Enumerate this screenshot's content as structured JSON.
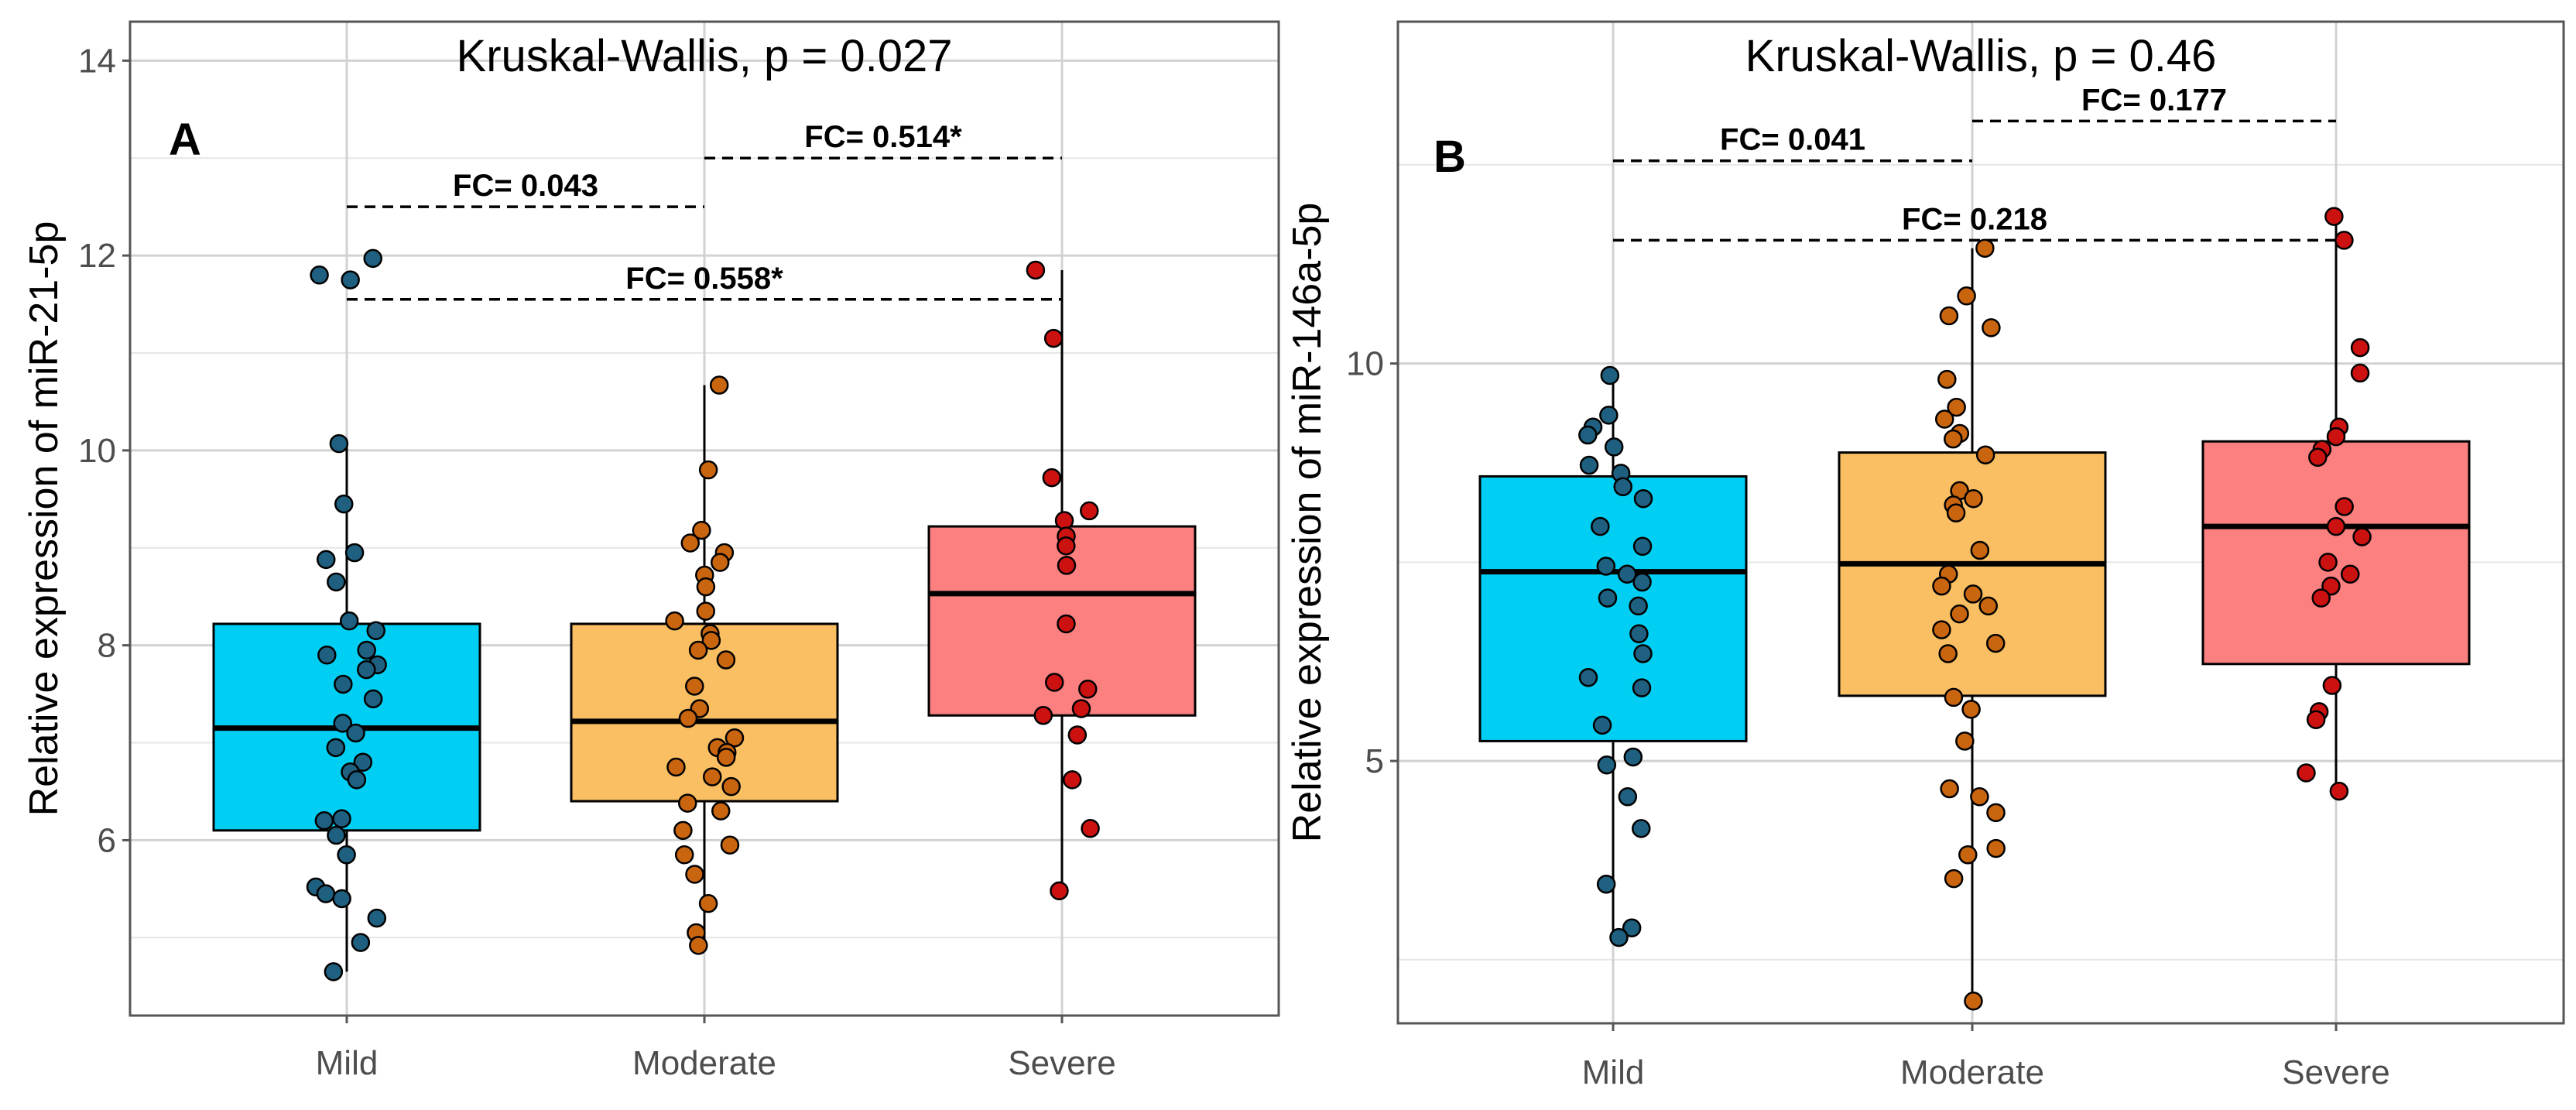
{
  "chart_data": [
    {
      "type": "boxplot",
      "panel_label": "A",
      "title": "Kruskal-Wallis, p = 0.027",
      "ylabel": "Relative expression of miR-21-5p",
      "xlabel": "",
      "ylim": [
        4.2,
        14.4
      ],
      "yticks": [
        6,
        8,
        10,
        12,
        14
      ],
      "grid": true,
      "categories": [
        "Mild",
        "Moderate",
        "Severe"
      ],
      "colors": [
        "#00cef3",
        "#fbbf63",
        "#fc8080"
      ],
      "point_colors": [
        "#1f5f7f",
        "#c9650f",
        "#cc1111"
      ],
      "boxes": [
        {
          "q1": 6.1,
          "median": 7.15,
          "q3": 8.22,
          "whisker_low": 4.65,
          "whisker_high": 10.07
        },
        {
          "q1": 6.4,
          "median": 7.22,
          "q3": 8.22,
          "whisker_low": 4.92,
          "whisker_high": 10.67
        },
        {
          "q1": 7.28,
          "median": 8.53,
          "q3": 9.22,
          "whisker_low": 5.48,
          "whisker_high": 11.85
        }
      ],
      "points": [
        [
          11.97,
          11.8,
          11.75,
          10.07,
          9.45,
          8.95,
          8.88,
          8.65,
          8.25,
          8.15,
          7.95,
          7.9,
          7.8,
          7.75,
          7.6,
          7.45,
          7.2,
          7.1,
          6.95,
          6.8,
          6.7,
          6.62,
          6.22,
          6.2,
          6.05,
          5.85,
          5.52,
          5.45,
          5.4,
          5.2,
          4.95,
          4.65
        ],
        [
          10.67,
          9.8,
          9.18,
          9.05,
          8.95,
          8.85,
          8.72,
          8.6,
          8.35,
          8.25,
          8.12,
          8.05,
          7.95,
          7.85,
          7.58,
          7.35,
          7.25,
          7.05,
          6.95,
          6.9,
          6.85,
          6.75,
          6.65,
          6.55,
          6.38,
          6.3,
          6.1,
          5.95,
          5.85,
          5.65,
          5.35,
          5.05,
          4.92
        ],
        [
          11.85,
          11.15,
          9.72,
          9.38,
          9.28,
          9.12,
          9.02,
          8.82,
          8.22,
          7.62,
          7.55,
          7.35,
          7.28,
          7.08,
          6.62,
          6.12,
          5.48
        ]
      ],
      "comparisons": [
        {
          "label": "FC= 0.043",
          "from": "Mild",
          "to": "Moderate",
          "y": 12.5
        },
        {
          "label": "FC= 0.514*",
          "from": "Moderate",
          "to": "Severe",
          "y": 13.0
        },
        {
          "label": "FC= 0.558*",
          "from": "Mild",
          "to": "Severe",
          "y": 11.55
        }
      ]
    },
    {
      "type": "boxplot",
      "panel_label": "B",
      "title": "Kruskal-Wallis, p = 0.46",
      "ylabel": "Relative expression of miR-146a-5p",
      "xlabel": "",
      "ylim": [
        1.7,
        14.3
      ],
      "yticks": [
        5,
        10
      ],
      "grid": true,
      "categories": [
        "Mild",
        "Moderate",
        "Severe"
      ],
      "colors": [
        "#00cef3",
        "#fbbf63",
        "#fc8080"
      ],
      "point_colors": [
        "#1f5f7f",
        "#c9650f",
        "#cc1111"
      ],
      "boxes": [
        {
          "q1": 5.25,
          "median": 7.38,
          "q3": 8.58,
          "whisker_low": 2.78,
          "whisker_high": 9.85
        },
        {
          "q1": 5.82,
          "median": 7.48,
          "q3": 8.88,
          "whisker_low": 1.98,
          "whisker_high": 11.45
        },
        {
          "q1": 6.22,
          "median": 7.95,
          "q3": 9.02,
          "whisker_low": 4.62,
          "whisker_high": 11.85
        }
      ],
      "points": [
        [
          9.85,
          9.35,
          9.2,
          9.1,
          8.95,
          8.72,
          8.62,
          8.45,
          8.3,
          7.95,
          7.7,
          7.45,
          7.35,
          7.25,
          7.05,
          6.95,
          6.6,
          6.35,
          6.05,
          5.92,
          5.45,
          5.05,
          4.95,
          4.55,
          4.15,
          3.45,
          2.9,
          2.78
        ],
        [
          11.45,
          10.85,
          10.6,
          10.45,
          9.8,
          9.45,
          9.3,
          9.12,
          9.05,
          8.85,
          8.4,
          8.3,
          8.22,
          8.12,
          7.65,
          7.35,
          7.2,
          7.1,
          6.95,
          6.85,
          6.65,
          6.48,
          6.35,
          5.8,
          5.65,
          5.25,
          4.65,
          4.55,
          4.35,
          3.9,
          3.82,
          3.52,
          1.98
        ],
        [
          11.85,
          11.55,
          10.2,
          9.88,
          9.2,
          9.08,
          8.92,
          8.82,
          8.2,
          7.95,
          7.82,
          7.5,
          7.35,
          7.2,
          7.05,
          5.95,
          5.62,
          5.52,
          4.85,
          4.62
        ]
      ],
      "comparisons": [
        {
          "label": "FC= 0.041",
          "from": "Mild",
          "to": "Moderate",
          "y": 12.55
        },
        {
          "label": "FC= 0.177",
          "from": "Moderate",
          "to": "Severe",
          "y": 13.05
        },
        {
          "label": "FC= 0.218",
          "from": "Mild",
          "to": "Severe",
          "y": 11.55
        }
      ]
    }
  ]
}
